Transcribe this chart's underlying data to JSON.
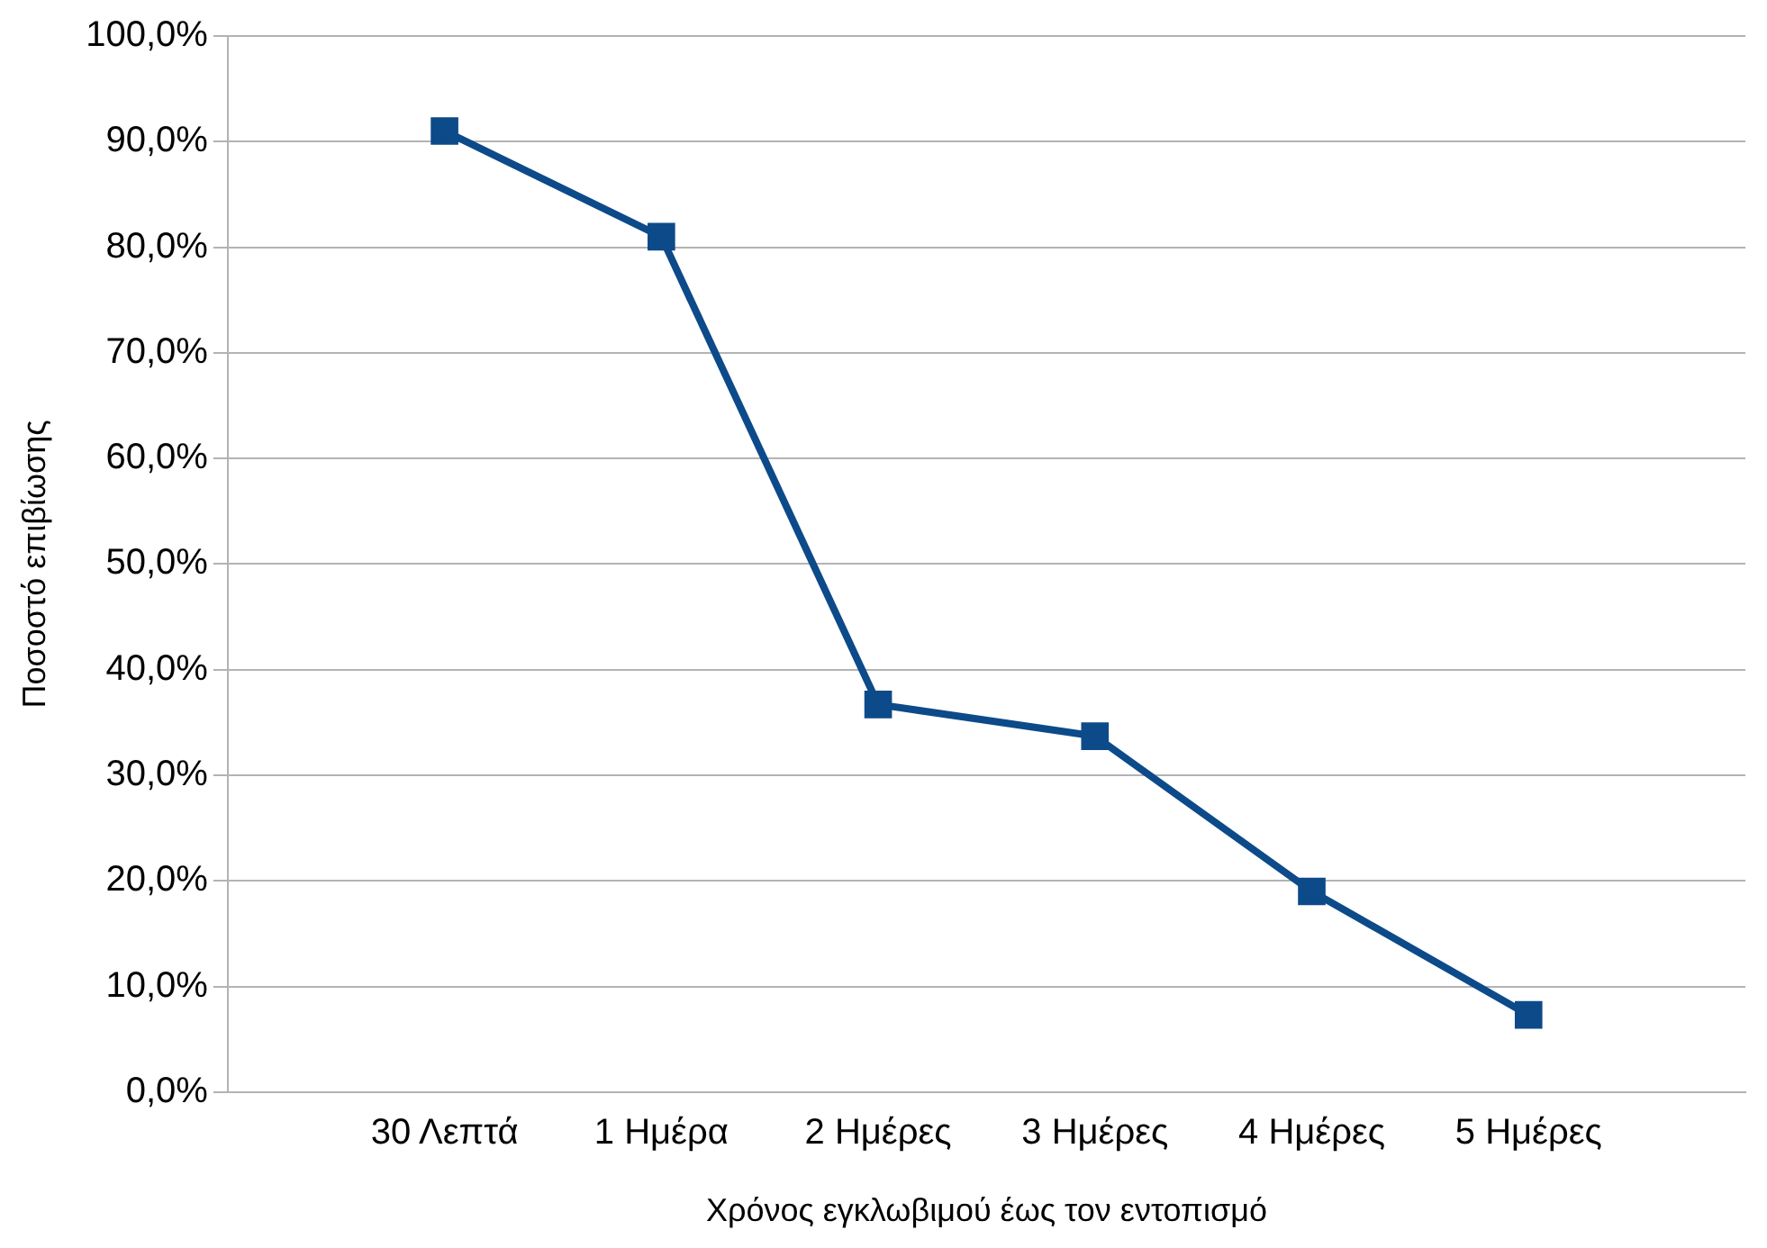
{
  "chart_data": {
    "type": "line",
    "xlabel": "Χρόνος εγκλωβιμού έως τον εντοπισμό",
    "ylabel": "Ποσοστό επιβίωσης",
    "categories": [
      null,
      "30 Λεπτά",
      "1 Ημέρα",
      "2 Ημέρες",
      "3 Ημέρες",
      "4 Ημέρες",
      "5 Ημέρες",
      null
    ],
    "series": [
      {
        "color": "#0d4a8a",
        "values": [
          null,
          91,
          81,
          36.7,
          33.7,
          19,
          7.3,
          null
        ]
      }
    ],
    "ylim": [
      0,
      100
    ],
    "yticks": [
      {
        "value": 0,
        "label": "0,0%"
      },
      {
        "value": 10,
        "label": "10,0%"
      },
      {
        "value": 20,
        "label": "20,0%"
      },
      {
        "value": 30,
        "label": "30,0%"
      },
      {
        "value": 40,
        "label": "40,0%"
      },
      {
        "value": 50,
        "label": "50,0%"
      },
      {
        "value": 60,
        "label": "60,0%"
      },
      {
        "value": 70,
        "label": "70,0%"
      },
      {
        "value": 80,
        "label": "80,0%"
      },
      {
        "value": 90,
        "label": "90,0%"
      },
      {
        "value": 100,
        "label": "100,0%"
      }
    ],
    "grid": "y",
    "legend": false,
    "marker": "square",
    "line_style": "solid"
  }
}
